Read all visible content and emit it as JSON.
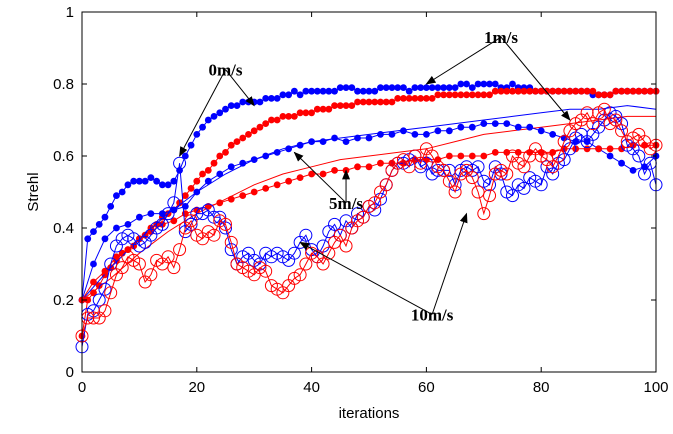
{
  "chart_data": {
    "type": "line",
    "title": "",
    "xlabel": "iterations",
    "ylabel": "Strehl",
    "xlim": [
      0,
      100
    ],
    "ylim": [
      0,
      1
    ],
    "xticks": [
      "0",
      "20",
      "40",
      "60",
      "80",
      "100"
    ],
    "yticks": [
      "0",
      "0.2",
      "0.4",
      "0.6",
      "0.8",
      "1"
    ],
    "grid": false,
    "legend": "none",
    "colors": {
      "blue": "#0000ff",
      "red": "#ff0000"
    },
    "series": [
      {
        "color": "#0000ff",
        "style": "line-filled-dots",
        "x": [
          0,
          1,
          2,
          3,
          4,
          5,
          6,
          7,
          8,
          9,
          10,
          11,
          12,
          13,
          14,
          15,
          16,
          17,
          18,
          19,
          20,
          21,
          22,
          23,
          24,
          25,
          26,
          27,
          28,
          29,
          30,
          31,
          32,
          33,
          34,
          35,
          36,
          37,
          38,
          39,
          40,
          41,
          42,
          43,
          44,
          45,
          46,
          47,
          48,
          49,
          50,
          51,
          52,
          53,
          54,
          55,
          56,
          57,
          58,
          59,
          60,
          61,
          62,
          63,
          64,
          65,
          66,
          67,
          68,
          69,
          70,
          71,
          72,
          73,
          74,
          75,
          76,
          77,
          78,
          79,
          80,
          81,
          82,
          83,
          84,
          85,
          86,
          87,
          88,
          89,
          90,
          91,
          92,
          93,
          94,
          95,
          96,
          97,
          98,
          99,
          100
        ],
        "y": [
          0.2,
          0.37,
          0.39,
          0.41,
          0.43,
          0.46,
          0.49,
          0.5,
          0.52,
          0.53,
          0.53,
          0.53,
          0.54,
          0.53,
          0.52,
          0.52,
          0.53,
          0.56,
          0.6,
          0.63,
          0.66,
          0.68,
          0.7,
          0.71,
          0.72,
          0.73,
          0.74,
          0.74,
          0.75,
          0.75,
          0.75,
          0.75,
          0.76,
          0.76,
          0.76,
          0.77,
          0.77,
          0.78,
          0.77,
          0.78,
          0.78,
          0.78,
          0.78,
          0.78,
          0.78,
          0.79,
          0.79,
          0.79,
          0.78,
          0.78,
          0.78,
          0.78,
          0.79,
          0.79,
          0.79,
          0.79,
          0.79,
          0.78,
          0.79,
          0.79,
          0.79,
          0.79,
          0.79,
          0.79,
          0.79,
          0.79,
          0.8,
          0.8,
          0.79,
          0.8,
          0.8,
          0.8,
          0.8,
          0.79,
          0.79,
          0.8,
          0.79,
          0.79,
          0.79,
          0.78,
          0.78,
          0.78,
          0.78,
          0.78,
          0.78,
          0.78,
          0.78,
          0.78,
          0.78,
          0.77,
          0.77,
          0.77,
          0.77,
          0.78,
          0.78,
          0.78,
          0.78,
          0.78,
          0.78,
          0.78,
          0.78
        ]
      },
      {
        "color": "#ff0000",
        "style": "line-filled-dots",
        "x": [
          0,
          1,
          2,
          3,
          4,
          5,
          6,
          7,
          8,
          9,
          10,
          11,
          12,
          13,
          14,
          15,
          16,
          17,
          18,
          19,
          20,
          21,
          22,
          23,
          24,
          25,
          26,
          27,
          28,
          29,
          30,
          31,
          32,
          33,
          34,
          35,
          36,
          37,
          38,
          39,
          40,
          41,
          42,
          43,
          44,
          45,
          46,
          47,
          48,
          49,
          50,
          51,
          52,
          53,
          54,
          55,
          56,
          57,
          58,
          59,
          60,
          61,
          62,
          63,
          64,
          65,
          66,
          67,
          68,
          69,
          70,
          71,
          72,
          73,
          74,
          75,
          76,
          77,
          78,
          79,
          80,
          81,
          82,
          83,
          84,
          85,
          86,
          87,
          88,
          89,
          90,
          91,
          92,
          93,
          94,
          95,
          96,
          97,
          98,
          99,
          100
        ],
        "y": [
          0.1,
          0.2,
          0.22,
          0.24,
          0.27,
          0.29,
          0.31,
          0.33,
          0.34,
          0.35,
          0.37,
          0.38,
          0.4,
          0.41,
          0.43,
          0.44,
          0.45,
          0.47,
          0.49,
          0.51,
          0.53,
          0.55,
          0.56,
          0.58,
          0.6,
          0.61,
          0.63,
          0.64,
          0.65,
          0.66,
          0.67,
          0.68,
          0.69,
          0.7,
          0.7,
          0.71,
          0.71,
          0.71,
          0.72,
          0.72,
          0.72,
          0.73,
          0.73,
          0.73,
          0.74,
          0.74,
          0.74,
          0.74,
          0.75,
          0.75,
          0.75,
          0.75,
          0.75,
          0.75,
          0.75,
          0.76,
          0.76,
          0.76,
          0.76,
          0.76,
          0.76,
          0.76,
          0.77,
          0.77,
          0.77,
          0.77,
          0.77,
          0.77,
          0.77,
          0.77,
          0.77,
          0.77,
          0.78,
          0.78,
          0.78,
          0.78,
          0.78,
          0.78,
          0.78,
          0.78,
          0.78,
          0.78,
          0.78,
          0.78,
          0.78,
          0.78,
          0.78,
          0.78,
          0.78,
          0.78,
          0.77,
          0.77,
          0.77,
          0.78,
          0.78,
          0.78,
          0.78,
          0.78,
          0.78,
          0.78,
          0.78
        ]
      },
      {
        "color": "#0000ff",
        "style": "line",
        "x": [
          0,
          5,
          10,
          15,
          20,
          25,
          30,
          35,
          40,
          45,
          50,
          55,
          60,
          65,
          70,
          75,
          80,
          85,
          90,
          95,
          100
        ],
        "y": [
          0.2,
          0.29,
          0.37,
          0.44,
          0.5,
          0.55,
          0.59,
          0.62,
          0.64,
          0.65,
          0.66,
          0.67,
          0.68,
          0.69,
          0.7,
          0.71,
          0.72,
          0.73,
          0.73,
          0.74,
          0.73
        ]
      },
      {
        "color": "#ff0000",
        "style": "line",
        "x": [
          0,
          5,
          10,
          15,
          20,
          25,
          30,
          35,
          40,
          45,
          50,
          55,
          60,
          65,
          70,
          75,
          80,
          85,
          90,
          95,
          100
        ],
        "y": [
          0.2,
          0.26,
          0.33,
          0.39,
          0.44,
          0.48,
          0.52,
          0.55,
          0.57,
          0.59,
          0.6,
          0.61,
          0.62,
          0.64,
          0.66,
          0.67,
          0.68,
          0.69,
          0.7,
          0.71,
          0.71
        ]
      },
      {
        "color": "#0000ff",
        "style": "line-filled-dots",
        "x": [
          0,
          2,
          4,
          6,
          8,
          10,
          12,
          14,
          16,
          18,
          20,
          22,
          24,
          26,
          28,
          30,
          32,
          34,
          36,
          38,
          40,
          42,
          44,
          46,
          48,
          50,
          52,
          54,
          56,
          58,
          60,
          62,
          64,
          66,
          68,
          70,
          72,
          74,
          76,
          78,
          80,
          82,
          84,
          86,
          88,
          90,
          92,
          94,
          96,
          98,
          100
        ],
        "y": [
          0.2,
          0.3,
          0.37,
          0.4,
          0.41,
          0.43,
          0.44,
          0.44,
          0.45,
          0.46,
          0.5,
          0.53,
          0.55,
          0.57,
          0.58,
          0.59,
          0.6,
          0.61,
          0.62,
          0.63,
          0.64,
          0.64,
          0.65,
          0.64,
          0.65,
          0.65,
          0.66,
          0.66,
          0.67,
          0.66,
          0.66,
          0.67,
          0.67,
          0.68,
          0.68,
          0.69,
          0.69,
          0.69,
          0.68,
          0.68,
          0.67,
          0.66,
          0.65,
          0.64,
          0.64,
          0.62,
          0.6,
          0.58,
          0.56,
          0.57,
          0.6
        ]
      },
      {
        "color": "#ff0000",
        "style": "line-filled-dots",
        "x": [
          0,
          2,
          4,
          6,
          8,
          10,
          12,
          14,
          16,
          18,
          20,
          22,
          24,
          26,
          28,
          30,
          32,
          34,
          36,
          38,
          40,
          42,
          44,
          46,
          48,
          50,
          52,
          54,
          56,
          58,
          60,
          62,
          64,
          66,
          68,
          70,
          72,
          74,
          76,
          78,
          80,
          82,
          84,
          86,
          88,
          90,
          92,
          94,
          96,
          98,
          100
        ],
        "y": [
          0.2,
          0.25,
          0.28,
          0.32,
          0.34,
          0.37,
          0.39,
          0.41,
          0.42,
          0.44,
          0.45,
          0.46,
          0.47,
          0.48,
          0.49,
          0.5,
          0.51,
          0.52,
          0.53,
          0.54,
          0.55,
          0.55,
          0.56,
          0.56,
          0.57,
          0.57,
          0.58,
          0.58,
          0.58,
          0.59,
          0.59,
          0.59,
          0.6,
          0.6,
          0.6,
          0.6,
          0.61,
          0.61,
          0.61,
          0.61,
          0.61,
          0.61,
          0.62,
          0.62,
          0.62,
          0.62,
          0.62,
          0.62,
          0.63,
          0.63,
          0.63
        ]
      },
      {
        "color": "#0000ff",
        "style": "line-open-circles",
        "x": [
          0,
          1,
          2,
          3,
          4,
          5,
          6,
          7,
          8,
          9,
          10,
          11,
          12,
          13,
          14,
          15,
          16,
          17,
          18,
          19,
          20,
          21,
          22,
          23,
          24,
          25,
          26,
          27,
          28,
          29,
          30,
          31,
          32,
          33,
          34,
          35,
          36,
          37,
          38,
          39,
          40,
          41,
          42,
          43,
          44,
          45,
          46,
          47,
          48,
          49,
          50,
          51,
          52,
          53,
          54,
          55,
          56,
          57,
          58,
          59,
          60,
          61,
          62,
          63,
          64,
          65,
          66,
          67,
          68,
          69,
          70,
          71,
          72,
          73,
          74,
          75,
          76,
          77,
          78,
          79,
          80,
          81,
          82,
          83,
          84,
          85,
          86,
          87,
          88,
          89,
          90,
          91,
          92,
          93,
          94,
          95,
          96,
          97,
          98,
          99,
          100
        ],
        "y": [
          0.07,
          0.16,
          0.17,
          0.2,
          0.23,
          0.3,
          0.35,
          0.37,
          0.38,
          0.37,
          0.35,
          0.36,
          0.38,
          0.4,
          0.41,
          0.44,
          0.47,
          0.58,
          0.39,
          0.41,
          0.44,
          0.44,
          0.45,
          0.43,
          0.43,
          0.4,
          0.34,
          0.3,
          0.32,
          0.33,
          0.31,
          0.3,
          0.33,
          0.32,
          0.33,
          0.32,
          0.31,
          0.33,
          0.36,
          0.38,
          0.34,
          0.32,
          0.35,
          0.39,
          0.41,
          0.38,
          0.42,
          0.4,
          0.44,
          0.43,
          0.46,
          0.45,
          0.48,
          0.52,
          0.56,
          0.58,
          0.58,
          0.59,
          0.6,
          0.57,
          0.58,
          0.55,
          0.56,
          0.56,
          0.56,
          0.52,
          0.56,
          0.57,
          0.56,
          0.57,
          0.53,
          0.52,
          0.57,
          0.55,
          0.5,
          0.49,
          0.52,
          0.51,
          0.54,
          0.53,
          0.52,
          0.57,
          0.55,
          0.58,
          0.59,
          0.62,
          0.65,
          0.66,
          0.64,
          0.66,
          0.68,
          0.7,
          0.72,
          0.71,
          0.69,
          0.63,
          0.62,
          0.6,
          0.55,
          0.58,
          0.52
        ]
      },
      {
        "color": "#ff0000",
        "style": "line-open-circles",
        "x": [
          0,
          1,
          2,
          3,
          4,
          5,
          6,
          7,
          8,
          9,
          10,
          11,
          12,
          13,
          14,
          15,
          16,
          17,
          18,
          19,
          20,
          21,
          22,
          23,
          24,
          25,
          26,
          27,
          28,
          29,
          30,
          31,
          32,
          33,
          34,
          35,
          36,
          37,
          38,
          39,
          40,
          41,
          42,
          43,
          44,
          45,
          46,
          47,
          48,
          49,
          50,
          51,
          52,
          53,
          54,
          55,
          56,
          57,
          58,
          59,
          60,
          61,
          62,
          63,
          64,
          65,
          66,
          67,
          68,
          69,
          70,
          71,
          72,
          73,
          74,
          75,
          76,
          77,
          78,
          79,
          80,
          81,
          82,
          83,
          84,
          85,
          86,
          87,
          88,
          89,
          90,
          91,
          92,
          93,
          94,
          95,
          96,
          97,
          98,
          99,
          100
        ],
        "y": [
          0.1,
          0.15,
          0.15,
          0.15,
          0.17,
          0.22,
          0.27,
          0.29,
          0.32,
          0.31,
          0.3,
          0.25,
          0.27,
          0.31,
          0.3,
          0.32,
          0.29,
          0.34,
          0.4,
          0.42,
          0.38,
          0.37,
          0.39,
          0.38,
          0.42,
          0.41,
          0.36,
          0.3,
          0.29,
          0.28,
          0.27,
          0.29,
          0.28,
          0.24,
          0.23,
          0.22,
          0.24,
          0.26,
          0.27,
          0.3,
          0.33,
          0.32,
          0.3,
          0.33,
          0.36,
          0.38,
          0.35,
          0.4,
          0.42,
          0.43,
          0.46,
          0.47,
          0.5,
          0.52,
          0.56,
          0.58,
          0.59,
          0.57,
          0.6,
          0.58,
          0.62,
          0.6,
          0.57,
          0.56,
          0.53,
          0.5,
          0.55,
          0.56,
          0.54,
          0.5,
          0.44,
          0.49,
          0.55,
          0.56,
          0.55,
          0.6,
          0.58,
          0.57,
          0.6,
          0.62,
          0.6,
          0.59,
          0.57,
          0.6,
          0.64,
          0.67,
          0.69,
          0.7,
          0.72,
          0.69,
          0.72,
          0.73,
          0.69,
          0.7,
          0.67,
          0.64,
          0.65,
          0.66,
          0.64,
          0.62,
          0.63
        ]
      }
    ],
    "annotations": [
      {
        "text": "0m/s",
        "x": 25,
        "y": 0.84,
        "targets": [
          [
            17,
            0.6
          ],
          [
            30,
            0.74
          ]
        ]
      },
      {
        "text": "1m/s",
        "x": 73,
        "y": 0.93,
        "targets": [
          [
            60,
            0.8
          ],
          [
            85,
            0.7
          ]
        ]
      },
      {
        "text": "5m/s",
        "x": 46,
        "y": 0.47,
        "targets": [
          [
            37,
            0.61
          ],
          [
            46,
            0.56
          ]
        ]
      },
      {
        "text": "10m/s",
        "x": 61,
        "y": 0.16,
        "targets": [
          [
            38,
            0.36
          ],
          [
            67,
            0.44
          ]
        ]
      }
    ]
  }
}
